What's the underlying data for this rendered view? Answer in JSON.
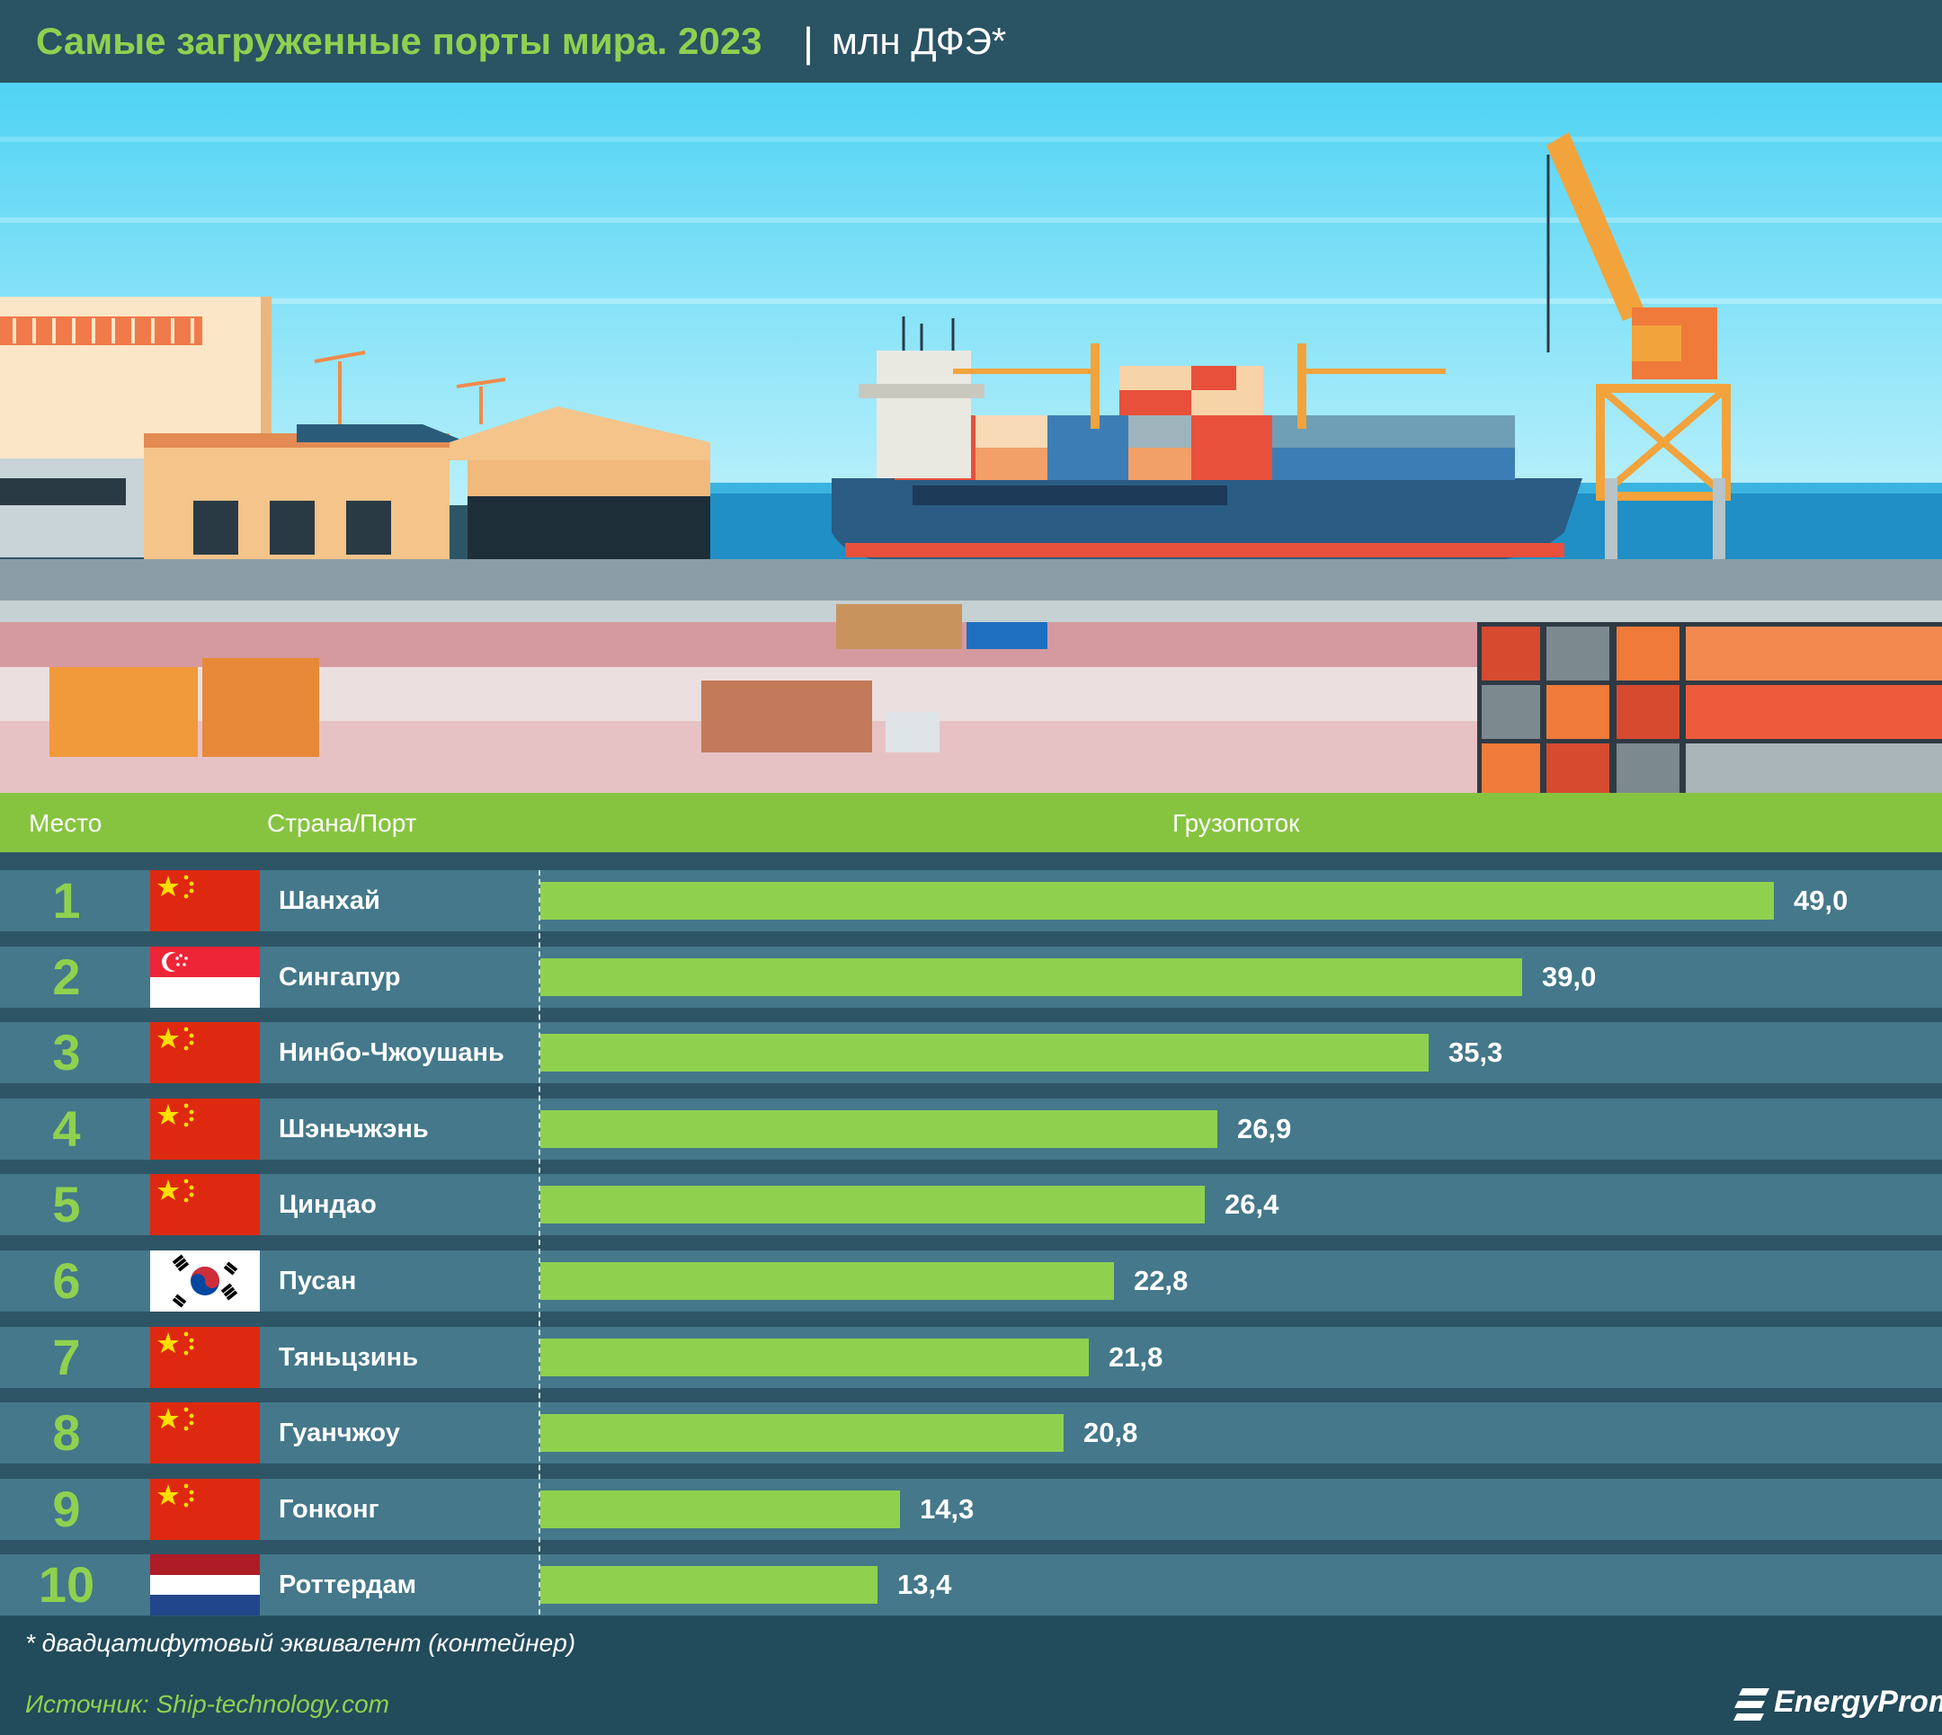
{
  "header": {
    "title": "Самые загруженные порты мира. 2023",
    "separator": "|",
    "unit": "млн ДФЭ*"
  },
  "columns": {
    "rank": "Место",
    "country_port": "Страна/Порт",
    "throughput": "Грузопоток"
  },
  "chart_data": {
    "type": "bar",
    "orientation": "horizontal",
    "title": "Самые загруженные порты мира. 2023",
    "unit": "млн ДФЭ*",
    "categories": [
      "Шанхай",
      "Сингапур",
      "Нинбо-Чжоушань",
      "Шэньчжэнь",
      "Циндао",
      "Пусан",
      "Тяньцзинь",
      "Гуанчжоу",
      "Гонконг",
      "Роттердам"
    ],
    "ranks": [
      "1",
      "2",
      "3",
      "4",
      "5",
      "6",
      "7",
      "8",
      "9",
      "10"
    ],
    "countries": [
      "china",
      "singapore",
      "china",
      "china",
      "china",
      "south-korea",
      "china",
      "china",
      "china",
      "netherlands"
    ],
    "values": [
      49.0,
      39.0,
      35.3,
      26.9,
      26.4,
      22.8,
      21.8,
      20.8,
      14.3,
      13.4
    ],
    "value_labels": [
      "49,0",
      "39,0",
      "35,3",
      "26,9",
      "26,4",
      "22,8",
      "21,8",
      "20,8",
      "14,3",
      "13,4"
    ],
    "bar_color": "#8fd14f"
  },
  "footer": {
    "note": "* двадцатифутовый эквивалент (контейнер)",
    "source": "Источник: Ship-technology.com",
    "brand": "EnergyProm"
  },
  "colors": {
    "accent_green": "#8fd14f",
    "header_bg": "#2a5363",
    "row_bg": "#44788a",
    "column_bar": "#86c440"
  }
}
